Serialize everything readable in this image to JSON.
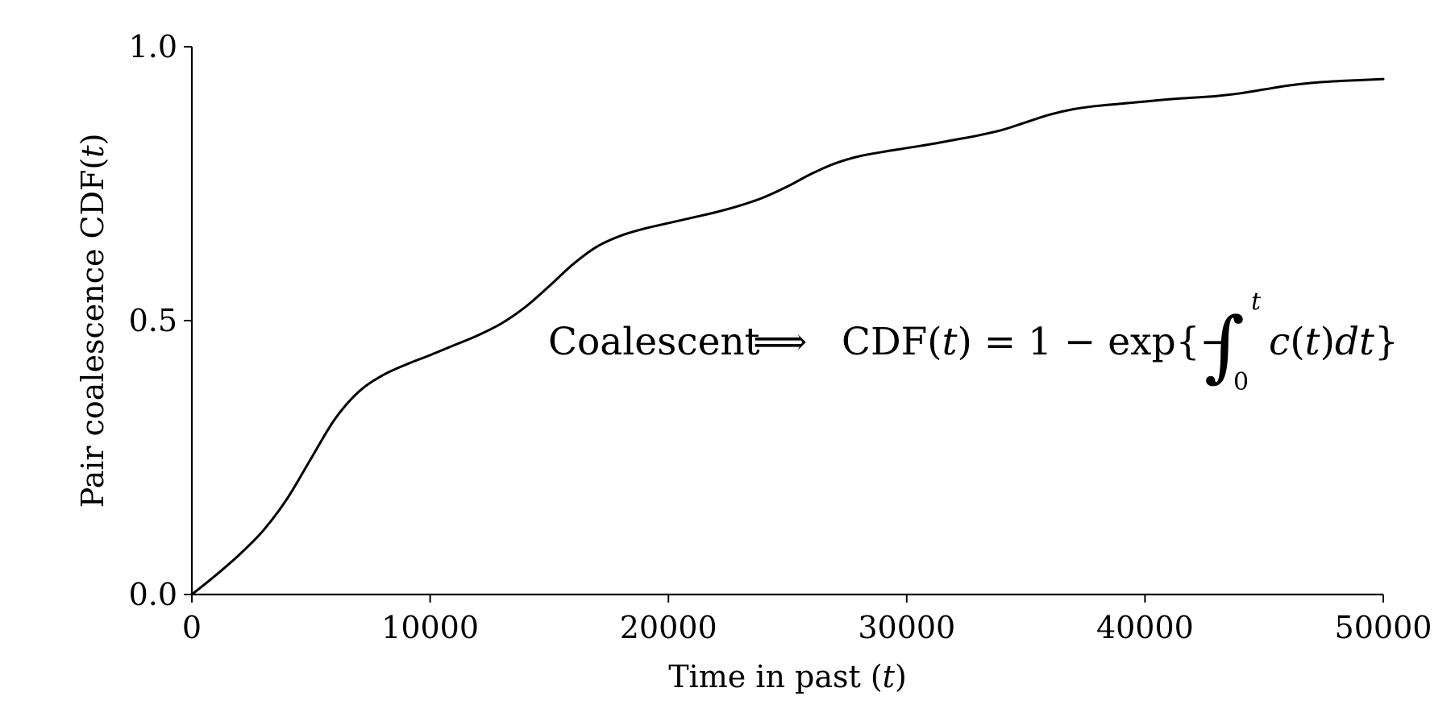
{
  "chart_data": {
    "type": "line",
    "title": "",
    "xlabel": "Time in past (t)",
    "xlabel_parts": {
      "prefix": "Time in past (",
      "var": "t",
      "suffix": ")"
    },
    "ylabel": "Pair coalescence CDF(t)",
    "ylabel_parts": {
      "prefix": "Pair coalescence CDF(",
      "var": "t",
      "suffix": ")"
    },
    "xlim": [
      0,
      50000
    ],
    "ylim": [
      0,
      1.0
    ],
    "xticks": [
      0,
      10000,
      20000,
      30000,
      40000,
      50000
    ],
    "xtick_labels": [
      "0",
      "10000",
      "20000",
      "30000",
      "40000",
      "50000"
    ],
    "yticks": [
      0,
      0.5,
      1.0
    ],
    "ytick_labels": [
      "0.0",
      "0.5",
      "1.0"
    ],
    "grid": false,
    "line_color": "#000000",
    "series": [
      {
        "x": [
          0,
          1000,
          2000,
          3000,
          4000,
          5000,
          6000,
          7000,
          8000,
          9000,
          10000,
          11000,
          12000,
          13000,
          14000,
          15000,
          16000,
          17000,
          18000,
          19000,
          20000,
          21000,
          22000,
          23000,
          24000,
          25000,
          26000,
          27000,
          28000,
          29000,
          30000,
          31000,
          32000,
          33000,
          34000,
          35000,
          36000,
          37000,
          38000,
          39000,
          40000,
          41000,
          42000,
          43000,
          44000,
          45000,
          46000,
          47000,
          48000,
          49000,
          50000
        ],
        "y": [
          0.0,
          0.035,
          0.073,
          0.117,
          0.175,
          0.248,
          0.32,
          0.37,
          0.4,
          0.42,
          0.437,
          0.455,
          0.473,
          0.495,
          0.525,
          0.563,
          0.603,
          0.635,
          0.655,
          0.668,
          0.678,
          0.688,
          0.698,
          0.71,
          0.725,
          0.745,
          0.768,
          0.787,
          0.8,
          0.808,
          0.815,
          0.822,
          0.83,
          0.838,
          0.848,
          0.862,
          0.876,
          0.886,
          0.892,
          0.896,
          0.9,
          0.904,
          0.907,
          0.91,
          0.915,
          0.922,
          0.929,
          0.934,
          0.937,
          0.939,
          0.941
        ]
      }
    ],
    "annotation": {
      "label": "Coalescent",
      "arrow": "⟹",
      "lhs": "CDF(",
      "lhs_var": "t",
      "lhs_close": ") = 1 − exp{−",
      "integral": "∫",
      "upper": "t",
      "lower": "0",
      "integrand_fn": "c",
      "integrand_open": "(",
      "integrand_var": "t",
      "integrand_mid": ")",
      "integrand_d": "dt",
      "close": "}"
    }
  }
}
